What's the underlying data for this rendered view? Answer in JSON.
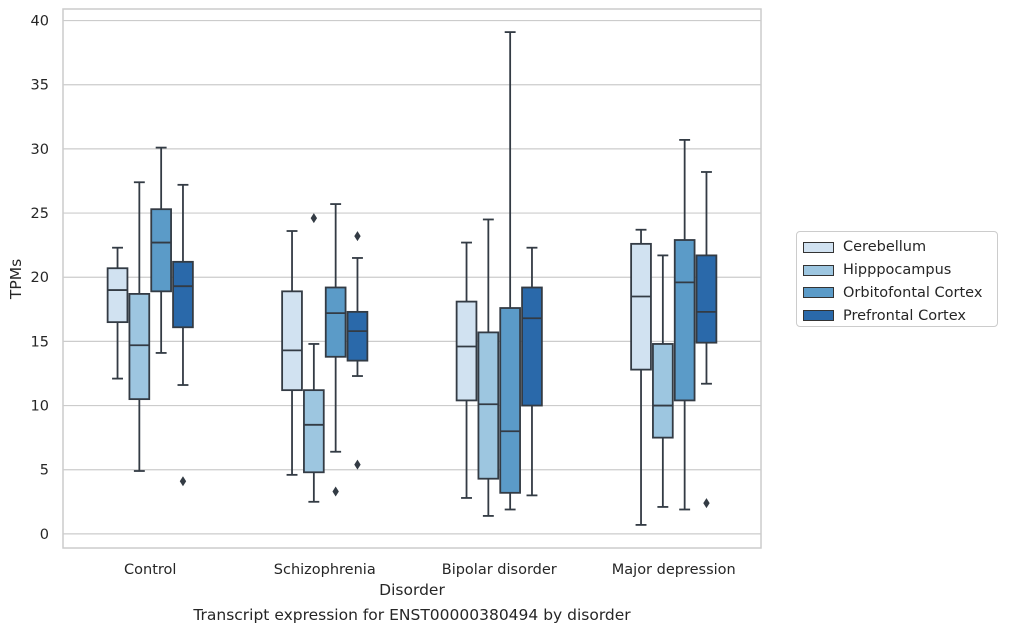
{
  "chart_data": {
    "type": "boxplot",
    "caption": "Transcript expression for ENST00000380494 by disorder",
    "xlabel": "Disorder",
    "ylabel": "TPMs",
    "ylim": [
      -1.1,
      40.9
    ],
    "yticks": [
      0,
      5,
      10,
      15,
      20,
      25,
      30,
      35,
      40
    ],
    "grid": true,
    "legend_position": "right",
    "categories": [
      "Control",
      "Schizophrenia",
      "Bipolar disorder",
      "Major depression"
    ],
    "series": [
      {
        "name": "Cerebellum",
        "color": "#d1e2f1",
        "boxes": [
          {
            "whislo": 12.1,
            "q1": 16.5,
            "med": 19.0,
            "q3": 20.7,
            "whishi": 22.3,
            "fliers": []
          },
          {
            "whislo": 4.6,
            "q1": 11.2,
            "med": 14.3,
            "q3": 18.9,
            "whishi": 23.6,
            "fliers": []
          },
          {
            "whislo": 2.8,
            "q1": 10.4,
            "med": 14.6,
            "q3": 18.1,
            "whishi": 22.7,
            "fliers": []
          },
          {
            "whislo": 0.7,
            "q1": 12.8,
            "med": 18.5,
            "q3": 22.6,
            "whishi": 23.7,
            "fliers": []
          }
        ]
      },
      {
        "name": "Hipppocampus",
        "color": "#9dc6e0",
        "boxes": [
          {
            "whislo": 4.9,
            "q1": 10.5,
            "med": 14.7,
            "q3": 18.7,
            "whishi": 27.4,
            "fliers": []
          },
          {
            "whislo": 2.5,
            "q1": 4.8,
            "med": 8.5,
            "q3": 11.2,
            "whishi": 14.8,
            "fliers": [
              24.6
            ]
          },
          {
            "whislo": 1.4,
            "q1": 4.3,
            "med": 10.1,
            "q3": 15.7,
            "whishi": 24.5,
            "fliers": []
          },
          {
            "whislo": 2.1,
            "q1": 7.5,
            "med": 10.0,
            "q3": 14.8,
            "whishi": 21.7,
            "fliers": []
          }
        ]
      },
      {
        "name": "Orbitofontal Cortex",
        "color": "#5b9bc8",
        "boxes": [
          {
            "whislo": 14.1,
            "q1": 18.9,
            "med": 22.7,
            "q3": 25.3,
            "whishi": 30.1,
            "fliers": []
          },
          {
            "whislo": 6.4,
            "q1": 13.8,
            "med": 17.2,
            "q3": 19.2,
            "whishi": 25.7,
            "fliers": [
              3.3
            ]
          },
          {
            "whislo": 1.9,
            "q1": 3.2,
            "med": 8.0,
            "q3": 17.6,
            "whishi": 39.1,
            "fliers": []
          },
          {
            "whislo": 1.9,
            "q1": 10.4,
            "med": 19.6,
            "q3": 22.9,
            "whishi": 30.7,
            "fliers": []
          }
        ]
      },
      {
        "name": "Prefrontal Cortex",
        "color": "#2a69aa",
        "boxes": [
          {
            "whislo": 11.6,
            "q1": 16.1,
            "med": 19.3,
            "q3": 21.2,
            "whishi": 27.2,
            "fliers": [
              4.1
            ]
          },
          {
            "whislo": 12.3,
            "q1": 13.5,
            "med": 15.8,
            "q3": 17.3,
            "whishi": 21.5,
            "fliers": [
              23.2,
              5.4
            ]
          },
          {
            "whislo": 3.0,
            "q1": 10.0,
            "med": 16.8,
            "q3": 19.2,
            "whishi": 22.3,
            "fliers": []
          },
          {
            "whislo": 11.7,
            "q1": 14.9,
            "med": 17.3,
            "q3": 21.7,
            "whishi": 28.2,
            "fliers": [
              2.4
            ]
          }
        ]
      }
    ]
  }
}
